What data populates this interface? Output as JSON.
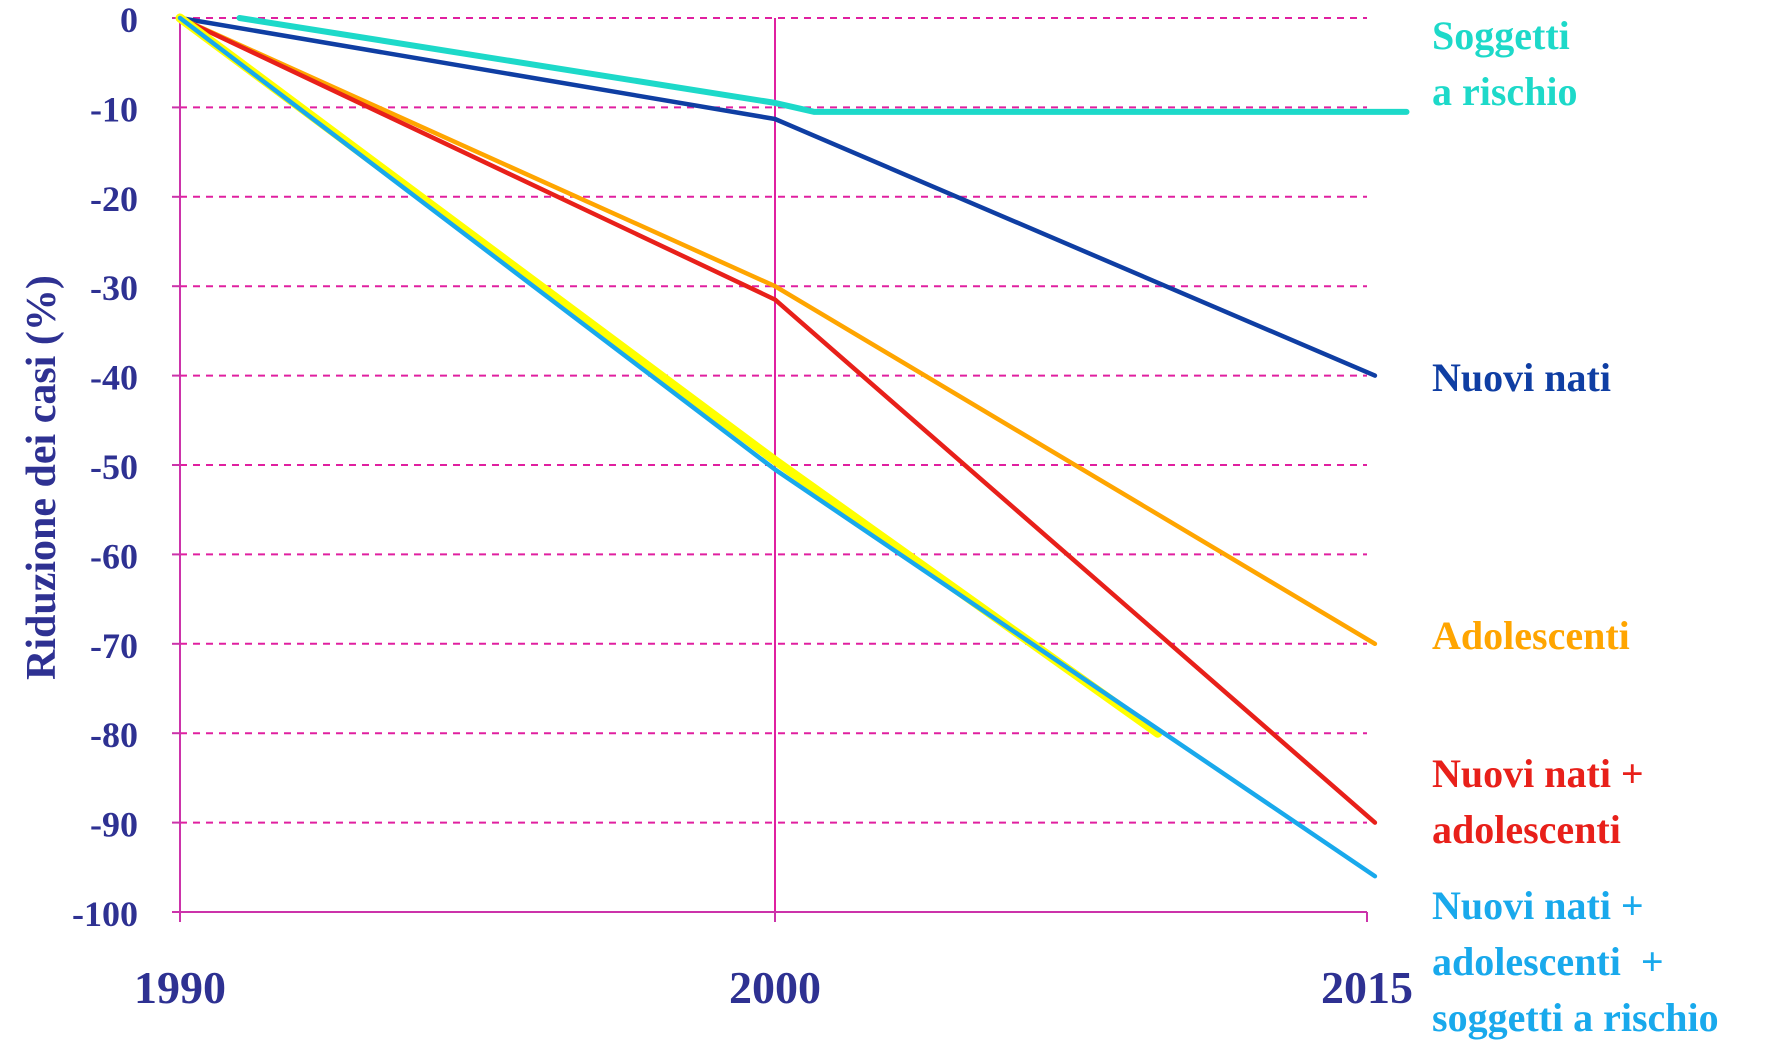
{
  "chart_data": {
    "type": "line",
    "title": "",
    "xlabel": "",
    "ylabel": "Riduzione dei casi (%)",
    "x_ticks": [
      "1990",
      "2000",
      "2015"
    ],
    "y_ticks": [
      "0",
      "-10",
      "-20",
      "-30",
      "-40",
      "-50",
      "-60",
      "-70",
      "-80",
      "-90",
      "-100"
    ],
    "ylim": [
      -100,
      0
    ],
    "grid": "horizontal dashed at every 10, vertical solid at 2000",
    "colors": {
      "grid": "#E020A0",
      "axis": "#CC33AA",
      "tick_text": "#2E3192"
    },
    "series": [
      {
        "name": "Soggetti a rischio",
        "label_lines": [
          "Soggetti",
          "a rischio"
        ],
        "color": "#1DD9C9",
        "points": [
          [
            1991,
            0
          ],
          [
            2000,
            -9.5
          ],
          [
            2001,
            -10.5
          ],
          [
            2016,
            -10.5
          ]
        ]
      },
      {
        "name": "Nuovi nati",
        "label_lines": [
          "Nuovi nati"
        ],
        "color": "#0F3EA3",
        "points": [
          [
            1990,
            0
          ],
          [
            2000,
            -11.3
          ],
          [
            2015.2,
            -40
          ]
        ]
      },
      {
        "name": "Adolescenti",
        "label_lines": [
          "Adolescenti"
        ],
        "color": "#FFA500",
        "points": [
          [
            1990,
            0
          ],
          [
            2000,
            -30
          ],
          [
            2015.2,
            -70
          ]
        ]
      },
      {
        "name": "Nuovi nati + adolescenti",
        "label_lines": [
          "Nuovi nati +",
          "adolescenti"
        ],
        "color": "#E8201A",
        "points": [
          [
            1990,
            0
          ],
          [
            2000,
            -31.5
          ],
          [
            2015.2,
            -90
          ]
        ]
      },
      {
        "name": "",
        "label_lines": [],
        "color": "#FFFF00",
        "points": [
          [
            1990,
            0
          ],
          [
            2000,
            -49.5
          ],
          [
            2009.7,
            -80
          ]
        ]
      },
      {
        "name": "Nuovi nati + adolescenti + soggetti a rischio",
        "label_lines": [
          "Nuovi nati +",
          "adolescenti  +",
          "soggetti a rischio"
        ],
        "color": "#19A9EC",
        "points": [
          [
            1990,
            0
          ],
          [
            2000,
            -50.5
          ],
          [
            2015.2,
            -96
          ]
        ]
      }
    ]
  }
}
